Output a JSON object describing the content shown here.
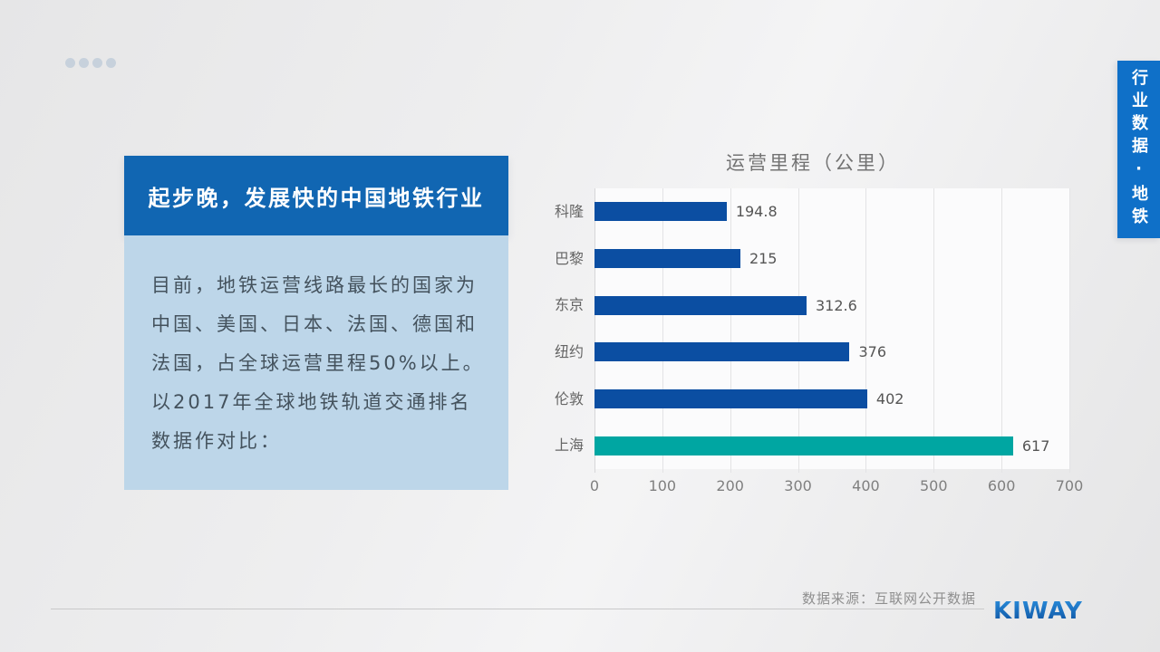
{
  "panel": {
    "title": "起步晚，发展快的中国地铁行业",
    "lines": [
      "目前，地铁运营线路最长的国家为",
      "中国、美国、日本、法国、德国和",
      "法国，占全球运营里程50%以上。",
      "以2017年全球地铁轨道交通排名",
      "数据作对比："
    ]
  },
  "chart_data": {
    "type": "bar",
    "orientation": "horizontal",
    "title": "运营里程（公里）",
    "categories": [
      "科隆",
      "巴黎",
      "东京",
      "纽约",
      "伦敦",
      "上海"
    ],
    "values": [
      194.8,
      215,
      312.6,
      376,
      402,
      617
    ],
    "value_labels": [
      "194.8",
      "215",
      "312.6",
      "376",
      "402",
      "617"
    ],
    "bar_colors": [
      "#0b4ea2",
      "#0b4ea2",
      "#0b4ea2",
      "#0b4ea2",
      "#0b4ea2",
      "#00a6a2"
    ],
    "xlim": [
      0,
      700
    ],
    "xticks": [
      0,
      100,
      200,
      300,
      400,
      500,
      600,
      700
    ],
    "grid": true,
    "legend": null,
    "xlabel": "",
    "ylabel": ""
  },
  "side_tab": {
    "text": "行业数据·地铁"
  },
  "footer": {
    "source": "数据来源：互联网公开数据",
    "logo": "KIWAY"
  },
  "colors": {
    "header_blue": "#1166b2",
    "banner_blue": "#0f70c8",
    "panel_light_blue": "#bdd6e9",
    "bar_blue": "#0b4ea2",
    "bar_teal": "#00a6a2",
    "logo_blue": "#1566b8"
  }
}
